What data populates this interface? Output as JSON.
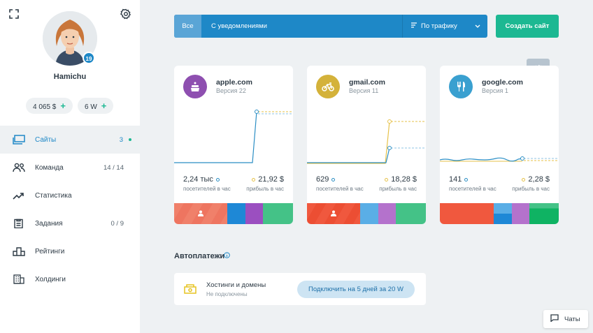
{
  "profile": {
    "username": "Hamichu",
    "level": "19",
    "balance_money": "4 065 $",
    "balance_w": "6 W",
    "plus": "+"
  },
  "nav": {
    "items": [
      {
        "label": "Сайты",
        "count": "3",
        "active": true,
        "icon": "monitor-icon"
      },
      {
        "label": "Команда",
        "count": "14 / 14",
        "icon": "team-icon"
      },
      {
        "label": "Статистика",
        "count": "",
        "icon": "trend-icon"
      },
      {
        "label": "Задания",
        "count": "0 / 9",
        "icon": "clipboard-icon"
      },
      {
        "label": "Рейтинги",
        "count": "",
        "icon": "podium-icon"
      },
      {
        "label": "Холдинги",
        "count": "",
        "icon": "building-icon"
      }
    ]
  },
  "toolbar": {
    "filter_all": "Все",
    "filter_notifications": "С уведомлениями",
    "sort_label": "По трафику",
    "create_button": "Создать сайт"
  },
  "sites": [
    {
      "name": "apple.com",
      "version": "Версия 22",
      "icon": "cake-icon",
      "icon_color": "#8e4fb0",
      "visitors": "2,24 тыс",
      "visitors_label": "посетителей в час",
      "profit": "21,92 $",
      "profit_label": "прибыль в час",
      "bar_colors": [
        "#f0806a",
        "#1e88d6",
        "#9b4fc0",
        "#44c287"
      ]
    },
    {
      "name": "gmail.com",
      "version": "Версия 11",
      "icon": "bicycle-icon",
      "icon_color": "#d4b23a",
      "visitors": "629",
      "visitors_label": "посетителей в час",
      "profit": "18,28 $",
      "profit_label": "прибыль в час",
      "bar_colors": [
        "#f0583e",
        "#5aaee6",
        "#b472cc",
        "#44c287"
      ]
    },
    {
      "name": "google.com",
      "version": "Версия 1",
      "icon": "cutlery-icon",
      "icon_color": "#3aa0d0",
      "visitors": "141",
      "visitors_label": "посетителей в час",
      "profit": "2,28 $",
      "profit_label": "прибыль в час",
      "bar_colors": [
        "#f0583e",
        "#5aaee6",
        "#b472cc",
        "#1cb892"
      ]
    }
  ],
  "autopay": {
    "title": "Автоплатежи",
    "item_name": "Хостинги и домены",
    "item_status": "Не подключены",
    "connect_button": "Подключить на 5 дней за 20 W"
  },
  "chats": {
    "label": "Чаты"
  }
}
